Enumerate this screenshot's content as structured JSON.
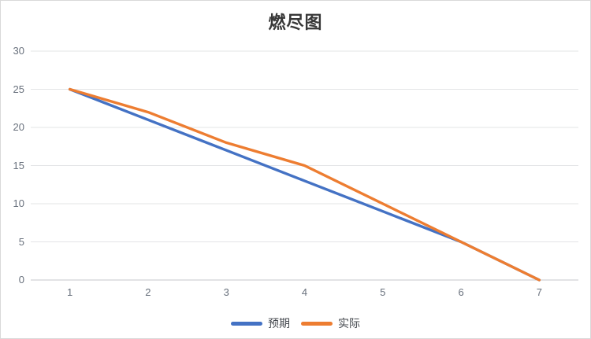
{
  "chart_data": {
    "type": "line",
    "title": "燃尽图",
    "categories": [
      "1",
      "2",
      "3",
      "4",
      "5",
      "6",
      "7"
    ],
    "series": [
      {
        "name": "预期",
        "color": "#4472C4",
        "values": [
          25,
          21,
          17,
          13,
          9,
          5,
          0
        ]
      },
      {
        "name": "实际",
        "color": "#ED7D31",
        "values": [
          25,
          22,
          18,
          15,
          10,
          5,
          0
        ]
      }
    ],
    "xlabel": "",
    "ylabel": "",
    "ylim": [
      0,
      30
    ],
    "y_ticks": [
      0,
      5,
      10,
      15,
      20,
      25,
      30
    ],
    "grid": "horizontal",
    "legend_position": "bottom",
    "colors": {
      "grid_line": "#e3e4e6",
      "axis_line": "#c4c7cb",
      "tick_text": "#68707c",
      "title_text": "#383838",
      "background": "#ffffff",
      "border": "#d9d9d9"
    }
  }
}
